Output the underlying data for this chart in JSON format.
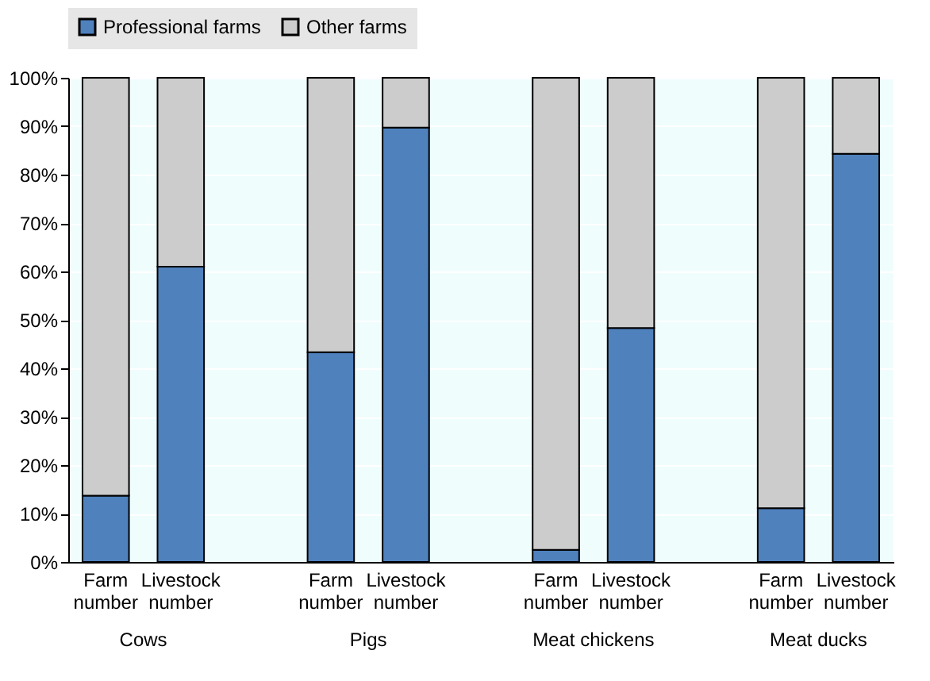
{
  "chart_data": {
    "type": "bar",
    "stacked": true,
    "categories": [
      "Farm number",
      "Livestock number",
      null,
      "Farm number",
      "Livestock number",
      null,
      "Farm number",
      "Livestock number",
      null,
      "Farm number",
      "Livestock number"
    ],
    "series": [
      {
        "name": "Professional farms",
        "color": "#4f81bd",
        "values": [
          13.7,
          61,
          null,
          43.3,
          89.7,
          null,
          2.5,
          48.3,
          null,
          11.1,
          84.3
        ]
      },
      {
        "name": "Other farms",
        "color": "#cccccc",
        "values": [
          86.3,
          39,
          null,
          56.7,
          10.3,
          null,
          97.5,
          51.7,
          null,
          88.9,
          15.7
        ]
      }
    ],
    "annotations": [
      "Cows",
      "Pigs",
      "Meat chickens",
      "Meat ducks"
    ],
    "ylim": [
      0,
      100
    ],
    "yticks": [
      {
        "value": 0,
        "label": "0%"
      },
      {
        "value": 10,
        "label": "10%"
      },
      {
        "value": 20,
        "label": "20%"
      },
      {
        "value": 30,
        "label": "30%"
      },
      {
        "value": 40,
        "label": "40%"
      },
      {
        "value": 50,
        "label": "50%"
      },
      {
        "value": 60,
        "label": "60%"
      },
      {
        "value": 70,
        "label": "70%"
      },
      {
        "value": 80,
        "label": "80%"
      },
      {
        "value": 90,
        "label": "90%"
      },
      {
        "value": 100,
        "label": "100%"
      }
    ],
    "grid": "y",
    "legend": "top"
  }
}
